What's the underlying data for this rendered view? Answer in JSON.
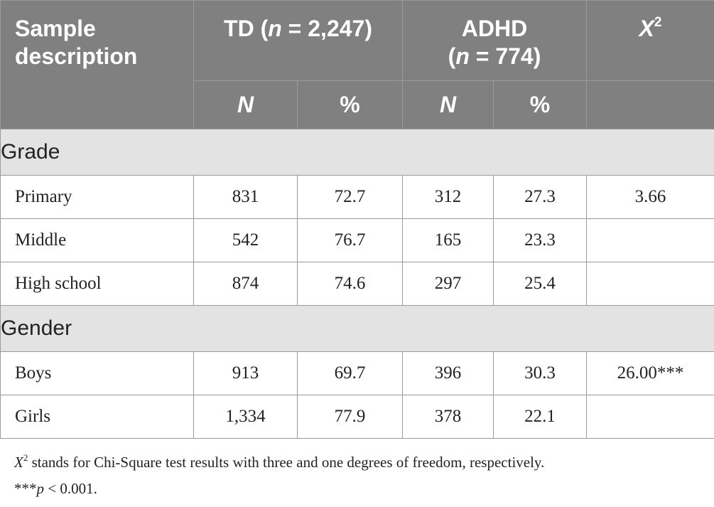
{
  "header": {
    "sample_description": [
      "Sample",
      "description"
    ],
    "td_label": "TD (",
    "td_n": "n",
    "td_rest": " = 2,247)",
    "adhd_label": "ADHD",
    "adhd_open": "(",
    "adhd_n": "n",
    "adhd_rest": " = 774)",
    "x2_letter": "X",
    "x2_sup": "2",
    "sub_n": "N",
    "sub_pct": "%"
  },
  "groups": [
    {
      "label": "Grade",
      "rows": [
        {
          "label": "Primary",
          "td_n": "831",
          "td_pct": "72.7",
          "adhd_n": "312",
          "adhd_pct": "27.3",
          "x2": "3.66"
        },
        {
          "label": "Middle",
          "td_n": "542",
          "td_pct": "76.7",
          "adhd_n": "165",
          "adhd_pct": "23.3",
          "x2": ""
        },
        {
          "label": "High school",
          "td_n": "874",
          "td_pct": "74.6",
          "adhd_n": "297",
          "adhd_pct": "25.4",
          "x2": ""
        }
      ]
    },
    {
      "label": "Gender",
      "rows": [
        {
          "label": "Boys",
          "td_n": "913",
          "td_pct": "69.7",
          "adhd_n": "396",
          "adhd_pct": "30.3",
          "x2": "26.00***"
        },
        {
          "label": "Girls",
          "td_n": "1,334",
          "td_pct": "77.9",
          "adhd_n": "378",
          "adhd_pct": "22.1",
          "x2": ""
        }
      ]
    }
  ],
  "footnote": {
    "x2_letter": "X",
    "x2_sup": "2",
    "text1": " stands for Chi-Square test results with three and one degrees of freedom, respectively.",
    "stars": "***",
    "p": "p",
    "text2": " < 0.001."
  }
}
